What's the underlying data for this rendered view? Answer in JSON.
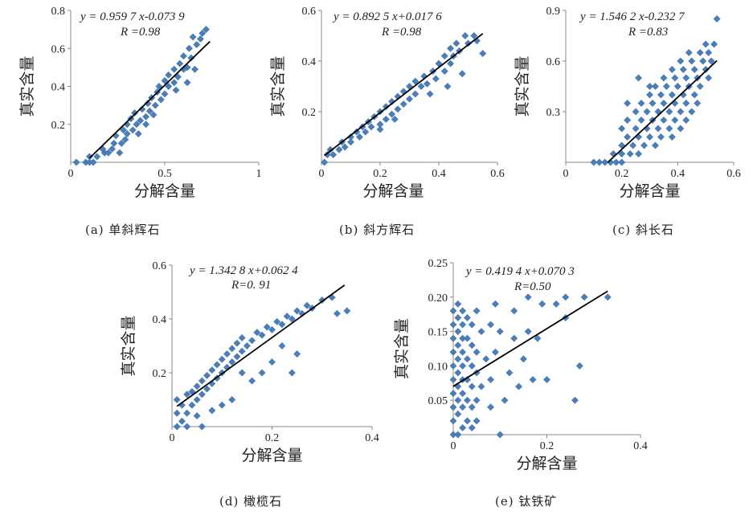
{
  "chart_data": [
    {
      "id": "a",
      "type": "scatter",
      "caption": "(a) 单斜辉石",
      "xlabel": "分解含量",
      "ylabel": "真实含量",
      "xlim": [
        0,
        1
      ],
      "ylim": [
        0,
        0.8
      ],
      "xticks": [
        "0",
        "0.5",
        "1"
      ],
      "yticks": [
        "0.2",
        "0.4",
        "0.6",
        "0.8"
      ],
      "equation": "y = 0.959 7 x-0.073 9",
      "r_text": "R =0.98",
      "fit": {
        "slope": 0.9597,
        "intercept": -0.0739,
        "x_range": [
          0.1,
          0.74
        ]
      },
      "marker_color": "#4a7ebb",
      "points": [
        [
          0.03,
          0
        ],
        [
          0.08,
          0
        ],
        [
          0.1,
          0
        ],
        [
          0.12,
          0
        ],
        [
          0.1,
          0.03
        ],
        [
          0.14,
          0.03
        ],
        [
          0.18,
          0.05
        ],
        [
          0.2,
          0.05
        ],
        [
          0.17,
          0.07
        ],
        [
          0.22,
          0.07
        ],
        [
          0.23,
          0.1
        ],
        [
          0.27,
          0.1
        ],
        [
          0.24,
          0.14
        ],
        [
          0.29,
          0.12
        ],
        [
          0.3,
          0.15
        ],
        [
          0.28,
          0.17
        ],
        [
          0.33,
          0.17
        ],
        [
          0.3,
          0.2
        ],
        [
          0.35,
          0.2
        ],
        [
          0.32,
          0.23
        ],
        [
          0.37,
          0.22
        ],
        [
          0.34,
          0.26
        ],
        [
          0.4,
          0.24
        ],
        [
          0.38,
          0.28
        ],
        [
          0.42,
          0.27
        ],
        [
          0.44,
          0.25
        ],
        [
          0.41,
          0.31
        ],
        [
          0.45,
          0.3
        ],
        [
          0.43,
          0.34
        ],
        [
          0.48,
          0.33
        ],
        [
          0.46,
          0.37
        ],
        [
          0.5,
          0.36
        ],
        [
          0.47,
          0.4
        ],
        [
          0.52,
          0.4
        ],
        [
          0.5,
          0.43
        ],
        [
          0.55,
          0.42
        ],
        [
          0.52,
          0.46
        ],
        [
          0.57,
          0.45
        ],
        [
          0.55,
          0.49
        ],
        [
          0.6,
          0.49
        ],
        [
          0.58,
          0.52
        ],
        [
          0.62,
          0.5
        ],
        [
          0.6,
          0.56
        ],
        [
          0.64,
          0.55
        ],
        [
          0.63,
          0.6
        ],
        [
          0.67,
          0.62
        ],
        [
          0.65,
          0.66
        ],
        [
          0.69,
          0.65
        ],
        [
          0.7,
          0.68
        ],
        [
          0.72,
          0.7
        ],
        [
          0.56,
          0.38
        ],
        [
          0.62,
          0.42
        ],
        [
          0.66,
          0.49
        ],
        [
          0.36,
          0.15
        ],
        [
          0.4,
          0.2
        ],
        [
          0.26,
          0.05
        ]
      ]
    },
    {
      "id": "b",
      "type": "scatter",
      "caption": "(b) 斜方辉石",
      "xlabel": "分解含量",
      "ylabel": "真实含量",
      "xlim": [
        0,
        0.6
      ],
      "ylim": [
        0,
        0.6
      ],
      "xticks": [
        "0",
        "0.2",
        "0.4",
        "0.6"
      ],
      "yticks": [
        "0.2",
        "0.4",
        "0.6"
      ],
      "equation": "y = 0.892 5 x+0.017 6",
      "r_text": "R =0.98",
      "fit": {
        "slope": 0.8925,
        "intercept": 0.0176,
        "x_range": [
          0.01,
          0.55
        ]
      },
      "marker_color": "#4a7ebb",
      "points": [
        [
          0.01,
          0.0
        ],
        [
          0.02,
          0.03
        ],
        [
          0.04,
          0.03
        ],
        [
          0.03,
          0.05
        ],
        [
          0.06,
          0.05
        ],
        [
          0.08,
          0.06
        ],
        [
          0.07,
          0.08
        ],
        [
          0.1,
          0.08
        ],
        [
          0.1,
          0.1
        ],
        [
          0.13,
          0.1
        ],
        [
          0.12,
          0.12
        ],
        [
          0.15,
          0.12
        ],
        [
          0.14,
          0.14
        ],
        [
          0.17,
          0.14
        ],
        [
          0.16,
          0.16
        ],
        [
          0.2,
          0.15
        ],
        [
          0.18,
          0.18
        ],
        [
          0.22,
          0.17
        ],
        [
          0.2,
          0.2
        ],
        [
          0.24,
          0.19
        ],
        [
          0.22,
          0.22
        ],
        [
          0.26,
          0.21
        ],
        [
          0.24,
          0.24
        ],
        [
          0.28,
          0.23
        ],
        [
          0.26,
          0.26
        ],
        [
          0.3,
          0.25
        ],
        [
          0.28,
          0.28
        ],
        [
          0.32,
          0.27
        ],
        [
          0.3,
          0.3
        ],
        [
          0.34,
          0.3
        ],
        [
          0.32,
          0.32
        ],
        [
          0.36,
          0.31
        ],
        [
          0.35,
          0.34
        ],
        [
          0.39,
          0.33
        ],
        [
          0.38,
          0.36
        ],
        [
          0.42,
          0.36
        ],
        [
          0.4,
          0.39
        ],
        [
          0.44,
          0.39
        ],
        [
          0.42,
          0.42
        ],
        [
          0.45,
          0.42
        ],
        [
          0.44,
          0.45
        ],
        [
          0.47,
          0.44
        ],
        [
          0.46,
          0.47
        ],
        [
          0.5,
          0.47
        ],
        [
          0.49,
          0.5
        ],
        [
          0.52,
          0.5
        ],
        [
          0.53,
          0.48
        ],
        [
          0.48,
          0.35
        ],
        [
          0.55,
          0.43
        ],
        [
          0.43,
          0.3
        ],
        [
          0.37,
          0.27
        ],
        [
          0.2,
          0.13
        ],
        [
          0.25,
          0.17
        ]
      ]
    },
    {
      "id": "c",
      "type": "scatter",
      "caption": "(c) 斜长石",
      "xlabel": "分解含量",
      "ylabel": "真实含量",
      "xlim": [
        0,
        0.6
      ],
      "ylim": [
        0,
        0.9
      ],
      "xticks": [
        "0",
        "0.2",
        "0.4",
        "0.6"
      ],
      "yticks": [
        "0.3",
        "0.6",
        "0.9"
      ],
      "equation": "y = 1.546 2 x-0.232 7",
      "r_text": "R =0.83",
      "fit": {
        "slope": 1.5462,
        "intercept": -0.2327,
        "x_range": [
          0.15,
          0.54
        ]
      },
      "marker_color": "#4a7ebb",
      "points": [
        [
          0.1,
          0
        ],
        [
          0.12,
          0
        ],
        [
          0.14,
          0
        ],
        [
          0.16,
          0
        ],
        [
          0.18,
          0
        ],
        [
          0.2,
          0
        ],
        [
          0.17,
          0.05
        ],
        [
          0.2,
          0.05
        ],
        [
          0.23,
          0.05
        ],
        [
          0.26,
          0.05
        ],
        [
          0.2,
          0.1
        ],
        [
          0.24,
          0.1
        ],
        [
          0.28,
          0.1
        ],
        [
          0.32,
          0.1
        ],
        [
          0.22,
          0.15
        ],
        [
          0.26,
          0.15
        ],
        [
          0.3,
          0.15
        ],
        [
          0.34,
          0.15
        ],
        [
          0.38,
          0.15
        ],
        [
          0.2,
          0.2
        ],
        [
          0.25,
          0.2
        ],
        [
          0.29,
          0.2
        ],
        [
          0.33,
          0.2
        ],
        [
          0.37,
          0.2
        ],
        [
          0.41,
          0.2
        ],
        [
          0.22,
          0.25
        ],
        [
          0.27,
          0.25
        ],
        [
          0.31,
          0.25
        ],
        [
          0.35,
          0.25
        ],
        [
          0.39,
          0.25
        ],
        [
          0.43,
          0.25
        ],
        [
          0.25,
          0.3
        ],
        [
          0.29,
          0.3
        ],
        [
          0.33,
          0.3
        ],
        [
          0.37,
          0.3
        ],
        [
          0.41,
          0.3
        ],
        [
          0.45,
          0.3
        ],
        [
          0.27,
          0.35
        ],
        [
          0.31,
          0.35
        ],
        [
          0.35,
          0.35
        ],
        [
          0.39,
          0.35
        ],
        [
          0.43,
          0.35
        ],
        [
          0.47,
          0.35
        ],
        [
          0.3,
          0.4
        ],
        [
          0.34,
          0.4
        ],
        [
          0.38,
          0.4
        ],
        [
          0.42,
          0.4
        ],
        [
          0.46,
          0.4
        ],
        [
          0.32,
          0.45
        ],
        [
          0.36,
          0.45
        ],
        [
          0.4,
          0.45
        ],
        [
          0.44,
          0.45
        ],
        [
          0.48,
          0.45
        ],
        [
          0.35,
          0.5
        ],
        [
          0.39,
          0.5
        ],
        [
          0.43,
          0.5
        ],
        [
          0.47,
          0.5
        ],
        [
          0.51,
          0.5
        ],
        [
          0.38,
          0.55
        ],
        [
          0.42,
          0.55
        ],
        [
          0.46,
          0.55
        ],
        [
          0.5,
          0.55
        ],
        [
          0.41,
          0.6
        ],
        [
          0.45,
          0.6
        ],
        [
          0.49,
          0.6
        ],
        [
          0.52,
          0.6
        ],
        [
          0.44,
          0.65
        ],
        [
          0.48,
          0.65
        ],
        [
          0.51,
          0.65
        ],
        [
          0.5,
          0.7
        ],
        [
          0.53,
          0.7
        ],
        [
          0.54,
          0.85
        ],
        [
          0.26,
          0.5
        ],
        [
          0.22,
          0.35
        ],
        [
          0.3,
          0.45
        ]
      ]
    },
    {
      "id": "d",
      "type": "scatter",
      "caption": "(d) 橄榄石",
      "xlabel": "分解含量",
      "ylabel": "真实含量",
      "xlim": [
        0,
        0.4
      ],
      "ylim": [
        0,
        0.6
      ],
      "xticks": [
        "0",
        "0.2",
        "0.4"
      ],
      "yticks": [
        "0.2",
        "0.4",
        "0.6"
      ],
      "equation": "y = 1.342 8 x+0.062 4",
      "r_text": "R=0. 91",
      "fit": {
        "slope": 1.3428,
        "intercept": 0.0624,
        "x_range": [
          0.01,
          0.345
        ]
      },
      "marker_color": "#4a7ebb",
      "points": [
        [
          0.01,
          0
        ],
        [
          0.02,
          0.02
        ],
        [
          0.01,
          0.05
        ],
        [
          0.03,
          0.05
        ],
        [
          0.02,
          0.08
        ],
        [
          0.04,
          0.08
        ],
        [
          0.01,
          0.1
        ],
        [
          0.03,
          0.12
        ],
        [
          0.05,
          0.1
        ],
        [
          0.04,
          0.13
        ],
        [
          0.06,
          0.12
        ],
        [
          0.05,
          0.15
        ],
        [
          0.07,
          0.14
        ],
        [
          0.06,
          0.17
        ],
        [
          0.08,
          0.16
        ],
        [
          0.07,
          0.19
        ],
        [
          0.09,
          0.18
        ],
        [
          0.08,
          0.21
        ],
        [
          0.1,
          0.2
        ],
        [
          0.09,
          0.23
        ],
        [
          0.11,
          0.22
        ],
        [
          0.1,
          0.25
        ],
        [
          0.12,
          0.24
        ],
        [
          0.11,
          0.27
        ],
        [
          0.13,
          0.26
        ],
        [
          0.12,
          0.29
        ],
        [
          0.14,
          0.28
        ],
        [
          0.13,
          0.31
        ],
        [
          0.15,
          0.3
        ],
        [
          0.14,
          0.33
        ],
        [
          0.16,
          0.32
        ],
        [
          0.17,
          0.35
        ],
        [
          0.18,
          0.34
        ],
        [
          0.19,
          0.37
        ],
        [
          0.2,
          0.36
        ],
        [
          0.21,
          0.39
        ],
        [
          0.22,
          0.38
        ],
        [
          0.23,
          0.41
        ],
        [
          0.24,
          0.4
        ],
        [
          0.25,
          0.43
        ],
        [
          0.26,
          0.42
        ],
        [
          0.27,
          0.45
        ],
        [
          0.28,
          0.44
        ],
        [
          0.3,
          0.47
        ],
        [
          0.32,
          0.48
        ],
        [
          0.35,
          0.43
        ],
        [
          0.33,
          0.42
        ],
        [
          0.24,
          0.2
        ],
        [
          0.25,
          0.27
        ],
        [
          0.18,
          0.2
        ],
        [
          0.16,
          0.17
        ],
        [
          0.06,
          0.0
        ],
        [
          0.03,
          0.0
        ],
        [
          0.05,
          0.04
        ],
        [
          0.08,
          0.06
        ],
        [
          0.1,
          0.08
        ],
        [
          0.12,
          0.1
        ],
        [
          0.2,
          0.24
        ],
        [
          0.22,
          0.3
        ],
        [
          0.14,
          0.2
        ]
      ]
    },
    {
      "id": "e",
      "type": "scatter",
      "caption": "(e) 钛铁矿",
      "xlabel": "分解含量",
      "ylabel": "真实含量",
      "xlim": [
        0,
        0.4
      ],
      "ylim": [
        0,
        0.25
      ],
      "xticks": [
        "0",
        "0.2",
        "0.4"
      ],
      "yticks": [
        "0.05",
        "0.10",
        "0.15",
        "0.20",
        "0.25"
      ],
      "equation": "y = 0.419 4 x+0.070 3",
      "r_text": "R=0.50",
      "fit": {
        "slope": 0.4194,
        "intercept": 0.0703,
        "x_range": [
          0.0,
          0.33
        ]
      },
      "marker_color": "#4a7ebb",
      "points": [
        [
          0.0,
          0.0
        ],
        [
          0.0,
          0.02
        ],
        [
          0.0,
          0.04
        ],
        [
          0.0,
          0.06
        ],
        [
          0.0,
          0.08
        ],
        [
          0.0,
          0.1
        ],
        [
          0.0,
          0.12
        ],
        [
          0.0,
          0.14
        ],
        [
          0.0,
          0.16
        ],
        [
          0.0,
          0.18
        ],
        [
          0.01,
          0.0
        ],
        [
          0.01,
          0.03
        ],
        [
          0.01,
          0.05
        ],
        [
          0.01,
          0.07
        ],
        [
          0.01,
          0.09
        ],
        [
          0.01,
          0.11
        ],
        [
          0.01,
          0.13
        ],
        [
          0.01,
          0.15
        ],
        [
          0.01,
          0.17
        ],
        [
          0.01,
          0.19
        ],
        [
          0.02,
          0.01
        ],
        [
          0.02,
          0.04
        ],
        [
          0.02,
          0.06
        ],
        [
          0.02,
          0.08
        ],
        [
          0.02,
          0.1
        ],
        [
          0.02,
          0.12
        ],
        [
          0.02,
          0.14
        ],
        [
          0.02,
          0.16
        ],
        [
          0.02,
          0.18
        ],
        [
          0.03,
          0.02
        ],
        [
          0.03,
          0.05
        ],
        [
          0.03,
          0.08
        ],
        [
          0.03,
          0.11
        ],
        [
          0.03,
          0.14
        ],
        [
          0.03,
          0.17
        ],
        [
          0.04,
          0.01
        ],
        [
          0.04,
          0.04
        ],
        [
          0.04,
          0.07
        ],
        [
          0.04,
          0.1
        ],
        [
          0.04,
          0.13
        ],
        [
          0.04,
          0.16
        ],
        [
          0.05,
          0.02
        ],
        [
          0.05,
          0.05
        ],
        [
          0.05,
          0.09
        ],
        [
          0.05,
          0.12
        ],
        [
          0.05,
          0.18
        ],
        [
          0.06,
          0.07
        ],
        [
          0.06,
          0.15
        ],
        [
          0.07,
          0.11
        ],
        [
          0.08,
          0.04
        ],
        [
          0.08,
          0.08
        ],
        [
          0.08,
          0.16
        ],
        [
          0.09,
          0.12
        ],
        [
          0.09,
          0.19
        ],
        [
          0.1,
          0.0
        ],
        [
          0.1,
          0.15
        ],
        [
          0.11,
          0.05
        ],
        [
          0.12,
          0.09
        ],
        [
          0.13,
          0.14
        ],
        [
          0.13,
          0.18
        ],
        [
          0.14,
          0.07
        ],
        [
          0.15,
          0.11
        ],
        [
          0.16,
          0.15
        ],
        [
          0.16,
          0.2
        ],
        [
          0.17,
          0.08
        ],
        [
          0.18,
          0.14
        ],
        [
          0.19,
          0.19
        ],
        [
          0.2,
          0.08
        ],
        [
          0.22,
          0.19
        ],
        [
          0.24,
          0.17
        ],
        [
          0.24,
          0.2
        ],
        [
          0.26,
          0.05
        ],
        [
          0.27,
          0.1
        ],
        [
          0.28,
          0.2
        ],
        [
          0.33,
          0.2
        ]
      ]
    }
  ]
}
